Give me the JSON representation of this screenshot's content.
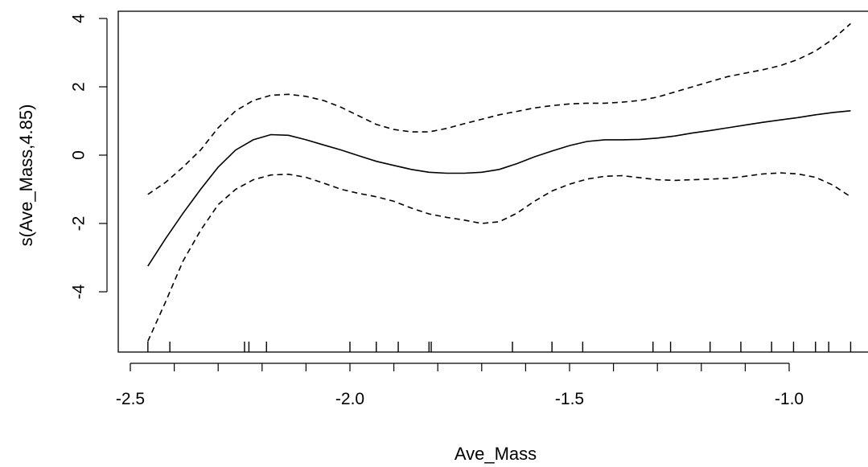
{
  "chart_data": {
    "type": "line",
    "title": "",
    "xlabel": "Ave_Mass",
    "ylabel": "s(Ave_Mass,4.85)",
    "xlim": [
      -2.47,
      -0.82
    ],
    "ylim": [
      -5.8,
      4.2
    ],
    "x_ticks": [
      -2.5,
      -2.0,
      -1.5,
      -1.0
    ],
    "x_tick_labels": [
      "-2.5",
      "-2.0",
      "-1.5",
      "-1.0"
    ],
    "y_ticks": [
      -4,
      -2,
      0,
      2,
      4
    ],
    "y_tick_labels": [
      "-4",
      "-2",
      "0",
      "2",
      "4"
    ],
    "grid": false,
    "legend": "none",
    "series": [
      {
        "style": "solid",
        "x": [
          -2.46,
          -2.42,
          -2.38,
          -2.34,
          -2.3,
          -2.26,
          -2.22,
          -2.18,
          -2.14,
          -2.1,
          -2.06,
          -2.02,
          -1.98,
          -1.94,
          -1.9,
          -1.86,
          -1.82,
          -1.78,
          -1.74,
          -1.7,
          -1.66,
          -1.62,
          -1.58,
          -1.54,
          -1.5,
          -1.46,
          -1.42,
          -1.38,
          -1.34,
          -1.3,
          -1.26,
          -1.22,
          -1.18,
          -1.14,
          -1.1,
          -1.06,
          -1.02,
          -0.98,
          -0.94,
          -0.9,
          -0.86
        ],
        "y": [
          -3.25,
          -2.45,
          -1.7,
          -1.0,
          -0.35,
          0.15,
          0.45,
          0.6,
          0.58,
          0.45,
          0.3,
          0.15,
          -0.02,
          -0.18,
          -0.3,
          -0.42,
          -0.5,
          -0.53,
          -0.53,
          -0.5,
          -0.42,
          -0.25,
          -0.05,
          0.12,
          0.28,
          0.4,
          0.45,
          0.45,
          0.46,
          0.5,
          0.56,
          0.65,
          0.72,
          0.8,
          0.88,
          0.96,
          1.03,
          1.1,
          1.18,
          1.25,
          1.3
        ]
      },
      {
        "style": "dashed",
        "x": [
          -2.46,
          -2.42,
          -2.38,
          -2.34,
          -2.3,
          -2.26,
          -2.22,
          -2.18,
          -2.14,
          -2.1,
          -2.06,
          -2.02,
          -1.98,
          -1.94,
          -1.9,
          -1.86,
          -1.82,
          -1.78,
          -1.74,
          -1.7,
          -1.66,
          -1.62,
          -1.58,
          -1.54,
          -1.5,
          -1.46,
          -1.42,
          -1.38,
          -1.34,
          -1.3,
          -1.26,
          -1.22,
          -1.18,
          -1.14,
          -1.1,
          -1.06,
          -1.02,
          -0.98,
          -0.94,
          -0.9,
          -0.86
        ],
        "y": [
          -1.15,
          -0.8,
          -0.35,
          0.15,
          0.8,
          1.3,
          1.6,
          1.75,
          1.78,
          1.72,
          1.6,
          1.4,
          1.15,
          0.9,
          0.75,
          0.68,
          0.68,
          0.78,
          0.92,
          1.05,
          1.18,
          1.28,
          1.38,
          1.45,
          1.5,
          1.52,
          1.52,
          1.55,
          1.6,
          1.7,
          1.85,
          2.0,
          2.15,
          2.3,
          2.4,
          2.5,
          2.62,
          2.8,
          3.05,
          3.4,
          3.85
        ]
      },
      {
        "style": "dashed",
        "x": [
          -2.46,
          -2.42,
          -2.38,
          -2.34,
          -2.3,
          -2.26,
          -2.22,
          -2.18,
          -2.14,
          -2.1,
          -2.06,
          -2.02,
          -1.98,
          -1.94,
          -1.9,
          -1.86,
          -1.82,
          -1.78,
          -1.74,
          -1.7,
          -1.66,
          -1.62,
          -1.58,
          -1.54,
          -1.5,
          -1.46,
          -1.42,
          -1.38,
          -1.34,
          -1.3,
          -1.26,
          -1.22,
          -1.18,
          -1.14,
          -1.1,
          -1.06,
          -1.02,
          -0.98,
          -0.94,
          -0.9,
          -0.86
        ],
        "y": [
          -5.45,
          -4.3,
          -3.1,
          -2.2,
          -1.45,
          -1.0,
          -0.72,
          -0.58,
          -0.56,
          -0.65,
          -0.82,
          -1.0,
          -1.12,
          -1.22,
          -1.35,
          -1.55,
          -1.72,
          -1.82,
          -1.9,
          -2.0,
          -1.95,
          -1.7,
          -1.35,
          -1.05,
          -0.85,
          -0.7,
          -0.62,
          -0.6,
          -0.66,
          -0.72,
          -0.74,
          -0.72,
          -0.7,
          -0.68,
          -0.62,
          -0.55,
          -0.52,
          -0.55,
          -0.65,
          -0.88,
          -1.22
        ]
      }
    ],
    "rug_x": [
      -2.46,
      -2.41,
      -2.24,
      -2.23,
      -2.19,
      -2.0,
      -1.94,
      -1.89,
      -1.82,
      -1.815,
      -1.63,
      -1.54,
      -1.47,
      -1.31,
      -1.27,
      -1.18,
      -1.11,
      -1.04,
      -0.99,
      -0.94,
      -0.91,
      -0.86
    ]
  }
}
